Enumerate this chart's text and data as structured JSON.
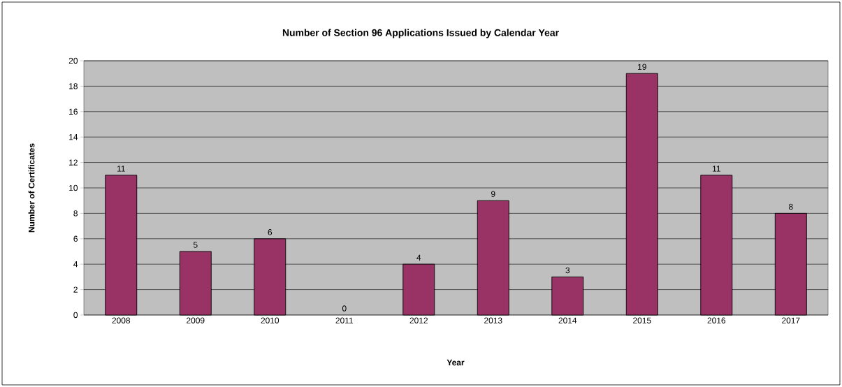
{
  "chart_data": {
    "type": "bar",
    "title": "Number of Section 96 Applications Issued by Calendar Year",
    "xlabel": "Year",
    "ylabel": "Number of Certificates",
    "categories": [
      "2008",
      "2009",
      "2010",
      "2011",
      "2012",
      "2013",
      "2014",
      "2015",
      "2016",
      "2017"
    ],
    "values": [
      11,
      5,
      6,
      0,
      4,
      9,
      3,
      19,
      11,
      8
    ],
    "color": "#993366",
    "ylim": [
      0,
      20
    ],
    "yticks": [
      0,
      2,
      4,
      6,
      8,
      10,
      12,
      14,
      16,
      18,
      20
    ],
    "grid": "y",
    "data_labels": true
  }
}
